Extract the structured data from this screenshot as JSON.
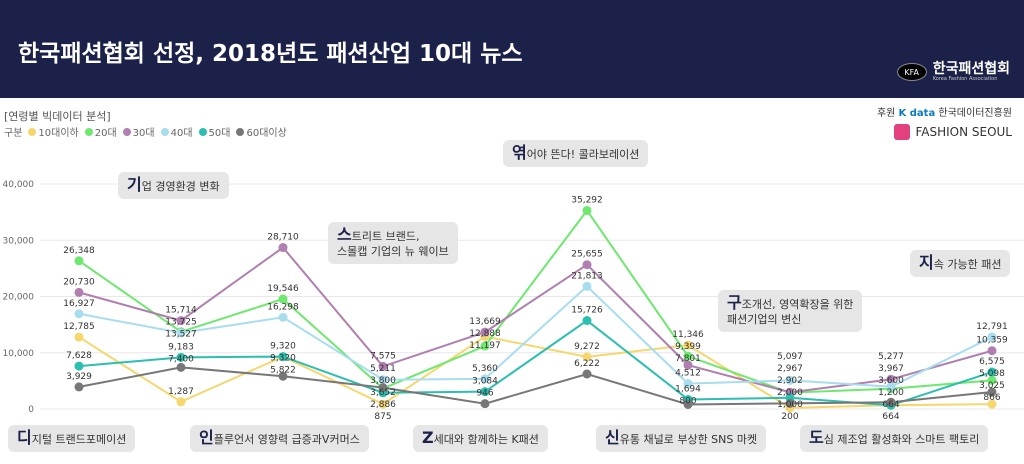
{
  "header": {
    "title": "한국패션협회 선정, 2018년도 패션산업 10대 뉴스",
    "logo_mark": "KFA",
    "logo_name": "한국패션협회",
    "logo_sub": "Korea Fashion Association"
  },
  "sponsor": {
    "label": "후원",
    "kdata": "K data",
    "kdata_org": "한국데이터진흥원",
    "fashion_seoul": "FASHION SEOUL"
  },
  "subtitle": "[연령별 빅데이터 분석]",
  "legend_label": "구분",
  "callouts": [
    {
      "initial": "기",
      "rest": "업 경영환경 변화"
    },
    {
      "initial": "스",
      "rest": "트리트 브랜드,",
      "line2": "스몰캡 기업의 뉴 웨이브"
    },
    {
      "initial": "엮",
      "rest": "어야 뜬다! 콜라보레이션"
    },
    {
      "initial": "구",
      "rest": "조개선, 영역확장을 위한",
      "line2": "패션기업의 변신"
    },
    {
      "initial": "지",
      "rest": "속 가능한 패션"
    },
    {
      "initial": "디",
      "rest": "지털 트랜드포메이션"
    },
    {
      "initial": "인",
      "rest": "플루언서 영향력 급증과V커머스"
    },
    {
      "initial": "Z",
      "rest": "세대와 함께하는 K패션"
    },
    {
      "initial": "신",
      "rest": "유통 채널로 부상한 SNS 마켓"
    },
    {
      "initial": "도",
      "rest": "심 제조업 활성화와 스마트 팩토리"
    }
  ],
  "chart_data": {
    "type": "line",
    "title": "연령별 빅데이터 분석",
    "categories": [
      "디지털 트랜드포메이션",
      "기업 경영환경 변화",
      "인플루언서 영향력 급증과V커머스",
      "스트리트 브랜드, 스몰캡 기업의 뉴 웨이브",
      "Z세대와 함께하는 K패션",
      "엮어야 뜬다! 콜라보레이션",
      "신유통 채널로 부상한 SNS 마켓",
      "구조개선, 영역확장을 위한 패션기업의 변신",
      "도심 제조업 활성화와 스마트 팩토리",
      "지속 가능한 패션"
    ],
    "ylim": [
      0,
      40000
    ],
    "yticks": [
      "0",
      "10,000",
      "20,000",
      "30,000",
      "40,000"
    ],
    "grid": true,
    "legend_placement": "top-left",
    "series": [
      {
        "name": "10대이하",
        "color": "#f5d76e",
        "values": [
          12785,
          1287,
          9320,
          875,
          12888,
          9272,
          11346,
          200,
          664,
          866
        ]
      },
      {
        "name": "20대",
        "color": "#6ee86e",
        "values": [
          26348,
          13725,
          19546,
          3652,
          11197,
          35292,
          9399,
          2902,
          3600,
          5098
        ]
      },
      {
        "name": "30대",
        "color": "#b07fb0",
        "values": [
          20730,
          15714,
          28710,
          7575,
          13669,
          25655,
          7801,
          2967,
          5277,
          10359
        ]
      },
      {
        "name": "40대",
        "color": "#a8ddf0",
        "values": [
          16927,
          13527,
          16298,
          5211,
          5360,
          21813,
          4512,
          5097,
          3967,
          12791
        ]
      },
      {
        "name": "50대",
        "color": "#2bbfb0",
        "values": [
          7628,
          9183,
          9320,
          2886,
          3084,
          15726,
          1694,
          2000,
          664,
          6575
        ]
      },
      {
        "name": "60대이상",
        "color": "#777777",
        "values": [
          3929,
          7400,
          5822,
          3800,
          946,
          6222,
          800,
          1000,
          1200,
          3025
        ]
      }
    ]
  }
}
